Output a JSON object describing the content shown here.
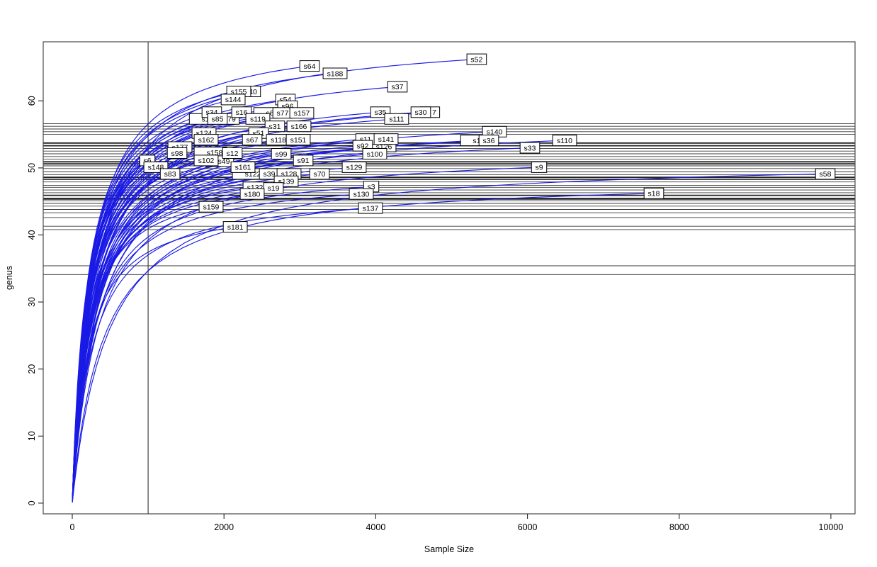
{
  "figure": {
    "xlabel": "Sample Size",
    "ylabel": "genus",
    "colors": {
      "curve": "#1a1ae6",
      "hline_thin": "#3a3a3a",
      "hline_thick": "#222222",
      "vline": "#333333",
      "box": "#4a4a4a",
      "tick": "#222222",
      "label_bg": "#ffffff",
      "label_border": "#000000",
      "text": "#000000"
    }
  },
  "chart_data": {
    "type": "line",
    "title": "",
    "xlabel": "Sample Size",
    "ylabel": "genus",
    "xlim": [
      -383,
      10318
    ],
    "ylim": [
      -1.6,
      68.8
    ],
    "x_ticks": [
      0,
      2000,
      4000,
      6000,
      8000,
      10000
    ],
    "y_ticks": [
      0,
      10,
      20,
      30,
      40,
      50,
      60
    ],
    "grid": false,
    "legend": "none",
    "vline_x": 1000,
    "curve_model": "Each series is a rarefaction curve rising from (1,1) and ending at (x,y) where its sample label box is drawn.",
    "series": [
      {
        "label": "40",
        "x": 2381,
        "y": 61.4,
        "occluded": true
      },
      {
        "label": "s6",
        "x": 2605,
        "y": 58.2,
        "occluded": true
      },
      {
        "label": "7",
        "x": 4771,
        "y": 58.3,
        "occluded": true
      },
      {
        "label": "s1",
        "x": 1755,
        "y": 57.3,
        "occluded": true
      },
      {
        "label": "79",
        "x": 2101,
        "y": 57.3,
        "occluded": true
      },
      {
        "label": "s1",
        "x": 5331,
        "y": 54.1,
        "occluded": true
      },
      {
        "label": "s126",
        "x": 4108,
        "y": 53.2,
        "occluded": true
      },
      {
        "label": "s158",
        "x": 1877,
        "y": 52.3,
        "occluded": true
      },
      {
        "label": "s49",
        "x": 1998,
        "y": 51.0,
        "occluded": true
      },
      {
        "label": "s122",
        "x": 2381,
        "y": 49.1,
        "occluded": true
      },
      {
        "label": "s52",
        "x": 5331,
        "y": 66.2
      },
      {
        "label": "s64",
        "x": 3128,
        "y": 65.2
      },
      {
        "label": "s188",
        "x": 3464,
        "y": 64.1
      },
      {
        "label": "s37",
        "x": 4286,
        "y": 62.1
      },
      {
        "label": "s155",
        "x": 2194,
        "y": 61.4
      },
      {
        "label": "s144",
        "x": 2120,
        "y": 60.2
      },
      {
        "label": "s54",
        "x": 2810,
        "y": 60.2
      },
      {
        "label": "s96",
        "x": 2838,
        "y": 59.2
      },
      {
        "label": "s34",
        "x": 1839,
        "y": 58.3
      },
      {
        "label": "s16",
        "x": 2232,
        "y": 58.3
      },
      {
        "label": "s77",
        "x": 2773,
        "y": 58.2
      },
      {
        "label": "s157",
        "x": 3025,
        "y": 58.2
      },
      {
        "label": "s35",
        "x": 4062,
        "y": 58.3
      },
      {
        "label": "s30",
        "x": 4594,
        "y": 58.3
      },
      {
        "label": "s85",
        "x": 1914,
        "y": 57.3
      },
      {
        "label": "s119",
        "x": 2446,
        "y": 57.3
      },
      {
        "label": "s111",
        "x": 4276,
        "y": 57.3
      },
      {
        "label": "s31",
        "x": 2670,
        "y": 56.2
      },
      {
        "label": "s166",
        "x": 2988,
        "y": 56.2
      },
      {
        "label": "s140",
        "x": 5565,
        "y": 55.4
      },
      {
        "label": "s124",
        "x": 1737,
        "y": 55.2
      },
      {
        "label": "s51",
        "x": 2456,
        "y": 55.2
      },
      {
        "label": "s36",
        "x": 5490,
        "y": 54.1
      },
      {
        "label": "s162",
        "x": 1765,
        "y": 54.2
      },
      {
        "label": "s67",
        "x": 2372,
        "y": 54.2
      },
      {
        "label": "s118",
        "x": 2717,
        "y": 54.2
      },
      {
        "label": "s151",
        "x": 2979,
        "y": 54.2
      },
      {
        "label": "s11",
        "x": 3866,
        "y": 54.3
      },
      {
        "label": "s141",
        "x": 4136,
        "y": 54.3
      },
      {
        "label": "s110",
        "x": 6490,
        "y": 54.1
      },
      {
        "label": "s92",
        "x": 3828,
        "y": 53.3
      },
      {
        "label": "s177",
        "x": 1419,
        "y": 53.1
      },
      {
        "label": "s33",
        "x": 6032,
        "y": 53.0
      },
      {
        "label": "s98",
        "x": 1382,
        "y": 52.2
      },
      {
        "label": "s12",
        "x": 2110,
        "y": 52.2
      },
      {
        "label": "s99",
        "x": 2754,
        "y": 52.1
      },
      {
        "label": "s100",
        "x": 3987,
        "y": 52.1
      },
      {
        "label": "s6",
        "x": 990,
        "y": 51.1
      },
      {
        "label": "s102",
        "x": 1765,
        "y": 51.1
      },
      {
        "label": "s91",
        "x": 3044,
        "y": 51.1
      },
      {
        "label": "s148",
        "x": 1102,
        "y": 50.1
      },
      {
        "label": "s161",
        "x": 2250,
        "y": 50.1
      },
      {
        "label": "s129",
        "x": 3716,
        "y": 50.1
      },
      {
        "label": "s9",
        "x": 6153,
        "y": 50.1
      },
      {
        "label": "s83",
        "x": 1289,
        "y": 49.1
      },
      {
        "label": "s39",
        "x": 2596,
        "y": 49.1
      },
      {
        "label": "s128",
        "x": 2857,
        "y": 49.1
      },
      {
        "label": "s70",
        "x": 3259,
        "y": 49.1
      },
      {
        "label": "s58",
        "x": 9926,
        "y": 49.1
      },
      {
        "label": "s139",
        "x": 2820,
        "y": 48.0
      },
      {
        "label": "s3",
        "x": 3940,
        "y": 47.2
      },
      {
        "label": "s132",
        "x": 2409,
        "y": 47.1
      },
      {
        "label": "s19",
        "x": 2652,
        "y": 47.0
      },
      {
        "label": "s130",
        "x": 3810,
        "y": 46.1
      },
      {
        "label": "s18",
        "x": 7666,
        "y": 46.2
      },
      {
        "label": "s180",
        "x": 2372,
        "y": 46.1
      },
      {
        "label": "s159",
        "x": 1830,
        "y": 44.2
      },
      {
        "label": "s137",
        "x": 3931,
        "y": 44.0
      },
      {
        "label": "s181",
        "x": 2148,
        "y": 41.2
      }
    ],
    "hlines": [
      {
        "y": 56.6,
        "w": 1
      },
      {
        "y": 56.2,
        "w": 1
      },
      {
        "y": 55.8,
        "w": 1
      },
      {
        "y": 55.4,
        "w": 1
      },
      {
        "y": 55.0,
        "w": 1
      },
      {
        "y": 53.7,
        "w": 2
      },
      {
        "y": 53.3,
        "w": 2
      },
      {
        "y": 52.9,
        "w": 1
      },
      {
        "y": 52.5,
        "w": 1
      },
      {
        "y": 52.1,
        "w": 1
      },
      {
        "y": 51.7,
        "w": 1
      },
      {
        "y": 51.3,
        "w": 1
      },
      {
        "y": 50.9,
        "w": 2
      },
      {
        "y": 50.6,
        "w": 2
      },
      {
        "y": 50.3,
        "w": 1
      },
      {
        "y": 49.9,
        "w": 1
      },
      {
        "y": 49.4,
        "w": 1
      },
      {
        "y": 49.0,
        "w": 1
      },
      {
        "y": 48.6,
        "w": 2
      },
      {
        "y": 48.3,
        "w": 2
      },
      {
        "y": 47.9,
        "w": 1
      },
      {
        "y": 47.4,
        "w": 1
      },
      {
        "y": 47.1,
        "w": 1
      },
      {
        "y": 46.7,
        "w": 1
      },
      {
        "y": 46.3,
        "w": 1
      },
      {
        "y": 45.9,
        "w": 2
      },
      {
        "y": 45.4,
        "w": 3
      },
      {
        "y": 45.1,
        "w": 1
      },
      {
        "y": 44.7,
        "w": 1
      },
      {
        "y": 44.3,
        "w": 1
      },
      {
        "y": 43.8,
        "w": 1
      },
      {
        "y": 43.3,
        "w": 1
      },
      {
        "y": 42.6,
        "w": 1
      },
      {
        "y": 41.3,
        "w": 1
      },
      {
        "y": 40.8,
        "w": 1
      },
      {
        "y": 35.4,
        "w": 1
      },
      {
        "y": 34.1,
        "w": 1
      }
    ]
  }
}
